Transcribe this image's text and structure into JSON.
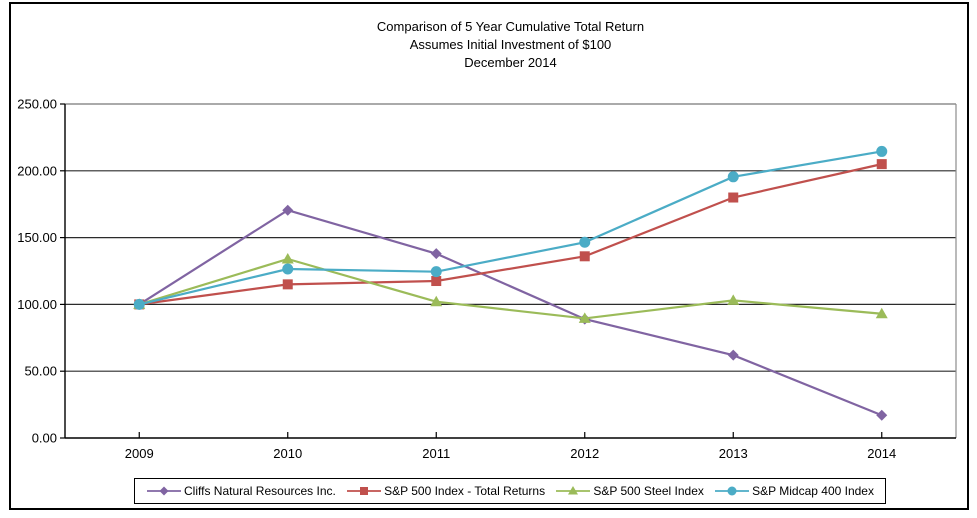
{
  "figure": {
    "background": "#ffffff",
    "border_color": "#000000"
  },
  "chart_data": {
    "type": "line",
    "title": "Comparison of 5 Year Cumulative Total Return",
    "subtitle": "Assumes Initial Investment of $100",
    "date_line": "December 2014",
    "categories": [
      "2009",
      "2010",
      "2011",
      "2012",
      "2013",
      "2014"
    ],
    "series": [
      {
        "name": "Cliffs Natural Resources Inc.",
        "color": "#8064A2",
        "marker": "diamond",
        "values": [
          100,
          170.5,
          138,
          89,
          62,
          17
        ]
      },
      {
        "name": "S&P 500 Index - Total Returns",
        "color": "#C0504D",
        "marker": "square",
        "values": [
          100,
          115,
          117.5,
          136,
          180,
          205
        ]
      },
      {
        "name": "S&P 500 Steel Index",
        "color": "#9BBB59",
        "marker": "triangle",
        "values": [
          100,
          134,
          102,
          89.5,
          103,
          93
        ]
      },
      {
        "name": "S&P Midcap 400 Index",
        "color": "#4BACC6",
        "marker": "circle",
        "values": [
          100,
          126.5,
          124.5,
          146.5,
          195.5,
          214.5
        ]
      }
    ],
    "y_tick_labels": [
      "250.00",
      "200.00",
      "150.00",
      "100.00",
      "50.00",
      "0.00"
    ],
    "y_tick_values": [
      250,
      200,
      150,
      100,
      50,
      0
    ],
    "ylim": [
      0,
      250
    ],
    "grid": true,
    "legend_position": "bottom",
    "axis_color": "#000000",
    "gridline_color": "#2b2b2b",
    "plot_border_color": "#8c8c8c"
  }
}
